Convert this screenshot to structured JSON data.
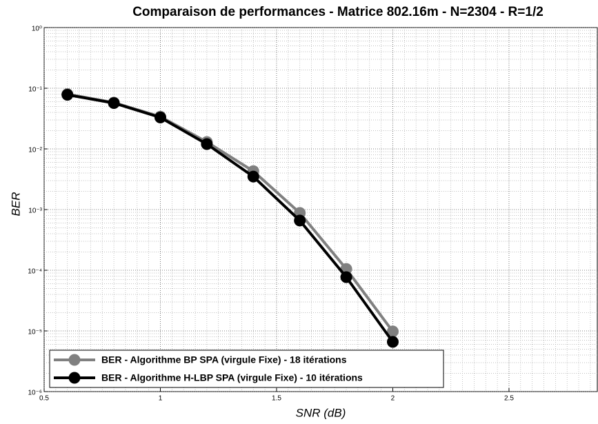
{
  "chart_data": {
    "type": "line",
    "title": "Comparaison de performances - Matrice 802.16m - N=2304 - R=1/2",
    "x_label": "SNR (dB)",
    "y_label": "BER",
    "x": [
      0.6,
      0.8,
      1.0,
      1.2,
      1.4,
      1.6,
      1.8,
      2.0
    ],
    "series": [
      {
        "name": "BER - Algorithme BP SPA (virgule Fixe) - 18 itérations",
        "color": "#808080",
        "values": [
          0.08,
          0.058,
          0.034,
          0.013,
          0.0043,
          0.00088,
          0.000105,
          9.8e-06
        ]
      },
      {
        "name": "BER - Algorithme H-LBP SPA (virgule Fixe) - 10 itérations",
        "color": "#000000",
        "values": [
          0.078,
          0.057,
          0.033,
          0.012,
          0.0035,
          0.00066,
          7.7e-05,
          6.6e-06
        ]
      }
    ],
    "xlim": [
      0.5,
      2.88
    ],
    "xticks": [
      0.5,
      1,
      1.5,
      2,
      2.5
    ],
    "ylim": [
      1e-06,
      1
    ],
    "log_y": true,
    "yticks": [
      {
        "value": 1,
        "label": "10⁰"
      },
      {
        "value": 0.1,
        "label": "10⁻¹"
      },
      {
        "value": 0.01,
        "label": "10⁻²"
      },
      {
        "value": 0.001,
        "label": "10⁻³"
      },
      {
        "value": 0.0001,
        "label": "10⁻⁴"
      },
      {
        "value": 1e-05,
        "label": "10⁻⁵"
      },
      {
        "value": 1e-06,
        "label": "10⁻⁶"
      }
    ],
    "grid": true,
    "legend": "lower left"
  }
}
